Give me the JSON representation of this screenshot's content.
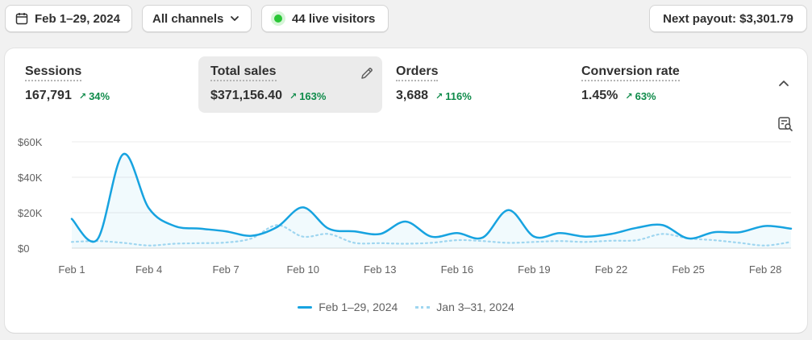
{
  "toolbar": {
    "date_range": "Feb 1–29, 2024",
    "channels": "All channels",
    "live_visitors": "44 live visitors",
    "payout": "Next payout: $3,301.79"
  },
  "metrics": [
    {
      "title": "Sessions",
      "value": "167,791",
      "change": "34%"
    },
    {
      "title": "Total sales",
      "value": "$371,156.40",
      "change": "163%"
    },
    {
      "title": "Orders",
      "value": "3,688",
      "change": "116%"
    },
    {
      "title": "Conversion rate",
      "value": "1.45%",
      "change": "63%"
    }
  ],
  "colors": {
    "primary_series": "#17a3e0",
    "comparison_series": "#9fd6f0",
    "positive_change": "#0f8b4a",
    "live_dot": "#29c636"
  },
  "icons": [
    "calendar-icon",
    "chevron-down-icon",
    "live-dot-icon",
    "pencil-icon",
    "chevron-up-icon",
    "report-icon",
    "trend-up-icon"
  ],
  "chart_data": {
    "type": "line",
    "title": "",
    "xlabel": "",
    "ylabel": "",
    "ylim": [
      0,
      60000
    ],
    "y_ticks": [
      0,
      20000,
      40000,
      60000
    ],
    "y_tick_labels": [
      "$0",
      "$20K",
      "$40K",
      "$60K"
    ],
    "x": [
      1,
      2,
      3,
      4,
      5,
      6,
      7,
      8,
      9,
      10,
      11,
      12,
      13,
      14,
      15,
      16,
      17,
      18,
      19,
      20,
      21,
      22,
      23,
      24,
      25,
      26,
      27,
      28,
      29
    ],
    "x_tick_labels": [
      "Feb 1",
      "Feb 4",
      "Feb 7",
      "Feb 10",
      "Feb 13",
      "Feb 16",
      "Feb 19",
      "Feb 22",
      "Feb 25",
      "Feb 28"
    ],
    "x_tick_positions": [
      1,
      4,
      7,
      10,
      13,
      16,
      19,
      22,
      25,
      28
    ],
    "grid": true,
    "legend_placement": "bottom-center",
    "series": [
      {
        "name": "Feb 1–29, 2024",
        "style": "solid",
        "values": [
          16500,
          5000,
          53000,
          22500,
          12500,
          11000,
          9500,
          7000,
          12000,
          23000,
          11000,
          9500,
          8000,
          15000,
          6500,
          8500,
          6000,
          21500,
          6500,
          8500,
          6500,
          8000,
          11500,
          13000,
          5500,
          9000,
          9000,
          12500,
          11000
        ]
      },
      {
        "name": "Jan 3–31, 2024",
        "style": "dotted",
        "values": [
          3500,
          4000,
          3000,
          1500,
          2500,
          2800,
          3200,
          5500,
          13000,
          6500,
          8000,
          3000,
          2800,
          2500,
          3000,
          4500,
          4000,
          3000,
          3500,
          4000,
          3500,
          4200,
          4500,
          8000,
          5500,
          4500,
          3000,
          1500,
          3500
        ]
      }
    ]
  }
}
